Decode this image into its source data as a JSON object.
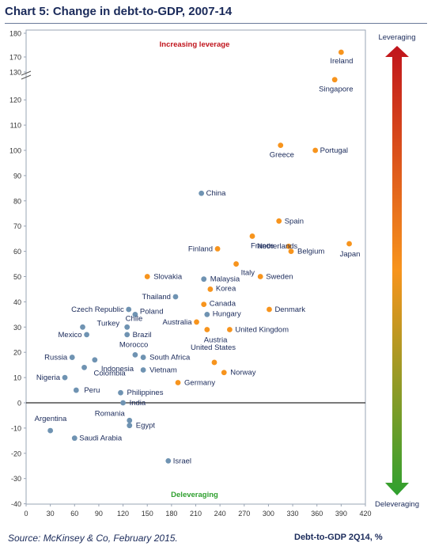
{
  "title": "Chart 5:  Change in debt-to-GDP, 2007-14",
  "source": "Source:  McKinsey & Co, February 2015.",
  "colors": {
    "advanced": "#f7941d",
    "developing": "#6f93b2",
    "scale_top": "#c0141c",
    "scale_mid": "#f7941d",
    "scale_bottom": "#2fa02f"
  },
  "chart_data": {
    "type": "scatter",
    "title": "Chart 5:  Change in debt-to-GDP, 2007-14",
    "xlabel": "Debt-to-GDP 2Q14, %",
    "ylabel": "",
    "xlim": [
      0,
      420
    ],
    "ylim": [
      -40,
      180
    ],
    "y_axis_break": [
      130,
      170
    ],
    "xticks": [
      "0",
      "30",
      "60",
      "90",
      "120",
      "150",
      "180",
      "210",
      "240",
      "270",
      "300",
      "330",
      "360",
      "390",
      "420"
    ],
    "yticks": [
      "-40",
      "-30",
      "-20",
      "-10",
      "0",
      "10",
      "20",
      "30",
      "40",
      "50",
      "60",
      "70",
      "80",
      "90",
      "100",
      "110",
      "120",
      "130",
      "170",
      "180"
    ],
    "annotations": {
      "top": "Increasing leverage",
      "bottom": "Deleveraging",
      "scale_top": "Leveraging",
      "scale_bottom": "Deleveraging"
    },
    "points": [
      {
        "label": "Ireland",
        "x": 390,
        "y": 172,
        "group": "advanced"
      },
      {
        "label": "Singapore",
        "x": 382,
        "y": 128,
        "group": "advanced"
      },
      {
        "label": "Greece",
        "x": 315,
        "y": 102,
        "group": "advanced"
      },
      {
        "label": "Portugal",
        "x": 358,
        "y": 100,
        "group": "advanced"
      },
      {
        "label": "China",
        "x": 217,
        "y": 83,
        "group": "developing"
      },
      {
        "label": "Spain",
        "x": 313,
        "y": 72,
        "group": "advanced"
      },
      {
        "label": "France",
        "x": 280,
        "y": 66,
        "group": "advanced"
      },
      {
        "label": "Netherlands",
        "x": 325,
        "y": 62,
        "group": "advanced"
      },
      {
        "label": "Belgium",
        "x": 328,
        "y": 60,
        "group": "advanced"
      },
      {
        "label": "Japan",
        "x": 400,
        "y": 63,
        "group": "advanced"
      },
      {
        "label": "Finland",
        "x": 237,
        "y": 61,
        "group": "advanced"
      },
      {
        "label": "Italy",
        "x": 260,
        "y": 55,
        "group": "advanced"
      },
      {
        "label": "Slovakia",
        "x": 150,
        "y": 50,
        "group": "advanced"
      },
      {
        "label": "Malaysia",
        "x": 220,
        "y": 49,
        "group": "developing"
      },
      {
        "label": "Sweden",
        "x": 290,
        "y": 50,
        "group": "advanced"
      },
      {
        "label": "Korea",
        "x": 228,
        "y": 45,
        "group": "advanced"
      },
      {
        "label": "Thailand",
        "x": 185,
        "y": 42,
        "group": "developing"
      },
      {
        "label": "Canada",
        "x": 220,
        "y": 39,
        "group": "advanced"
      },
      {
        "label": "Czech Republic",
        "x": 127,
        "y": 37,
        "group": "developing"
      },
      {
        "label": "Poland",
        "x": 135,
        "y": 35,
        "group": "developing"
      },
      {
        "label": "Denmark",
        "x": 301,
        "y": 37,
        "group": "advanced"
      },
      {
        "label": "Hungary",
        "x": 224,
        "y": 35,
        "group": "developing"
      },
      {
        "label": "Australia",
        "x": 211,
        "y": 32,
        "group": "advanced"
      },
      {
        "label": "Turkey",
        "x": 70,
        "y": 30,
        "group": "developing"
      },
      {
        "label": "Chile",
        "x": 125,
        "y": 30,
        "group": "developing"
      },
      {
        "label": "Austria",
        "x": 224,
        "y": 29,
        "group": "advanced"
      },
      {
        "label": "United Kingdom",
        "x": 252,
        "y": 29,
        "group": "advanced"
      },
      {
        "label": "Mexico",
        "x": 75,
        "y": 27,
        "group": "developing"
      },
      {
        "label": "Brazil",
        "x": 125,
        "y": 27,
        "group": "developing"
      },
      {
        "label": "Morocco",
        "x": 135,
        "y": 19,
        "group": "developing"
      },
      {
        "label": "Russia",
        "x": 57,
        "y": 18,
        "group": "developing"
      },
      {
        "label": "Indonesia",
        "x": 85,
        "y": 17,
        "group": "developing"
      },
      {
        "label": "South Africa",
        "x": 145,
        "y": 18,
        "group": "developing"
      },
      {
        "label": "United States",
        "x": 233,
        "y": 16,
        "group": "advanced"
      },
      {
        "label": "Vietnam",
        "x": 145,
        "y": 13,
        "group": "developing"
      },
      {
        "label": "Norway",
        "x": 245,
        "y": 12,
        "group": "advanced"
      },
      {
        "label": "Colombia",
        "x": 72,
        "y": 14,
        "group": "developing"
      },
      {
        "label": "Nigeria",
        "x": 48,
        "y": 10,
        "group": "developing"
      },
      {
        "label": "Germany",
        "x": 188,
        "y": 8,
        "group": "advanced"
      },
      {
        "label": "Peru",
        "x": 62,
        "y": 5,
        "group": "developing"
      },
      {
        "label": "Philippines",
        "x": 117,
        "y": 4,
        "group": "developing"
      },
      {
        "label": "India",
        "x": 120,
        "y": 0,
        "group": "developing"
      },
      {
        "label": "Argentina",
        "x": 30,
        "y": -11,
        "group": "developing"
      },
      {
        "label": "Romania",
        "x": 128,
        "y": -7,
        "group": "developing"
      },
      {
        "label": "Egypt",
        "x": 128,
        "y": -9,
        "group": "developing"
      },
      {
        "label": "Saudi Arabia",
        "x": 60,
        "y": -14,
        "group": "developing"
      },
      {
        "label": "Israel",
        "x": 176,
        "y": -23,
        "group": "developing"
      }
    ]
  }
}
